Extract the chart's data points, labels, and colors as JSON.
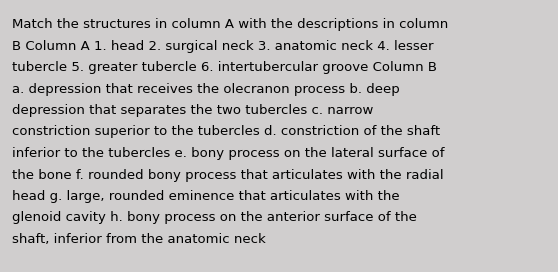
{
  "background_color": "#d0cece",
  "text_color": "#000000",
  "font_size": 9.5,
  "font_family": "DejaVu Sans",
  "wrapped_lines": [
    "Match the structures in column A with the descriptions in column",
    "B Column A 1. head 2. surgical neck 3. anatomic neck 4. lesser",
    "tubercle 5. greater tubercle 6. intertubercular groove Column B",
    "a. depression that receives the olecranon process b. deep",
    "depression that separates the two tubercles c. narrow",
    "constriction superior to the tubercles d. constriction of the shaft",
    "inferior to the tubercles e. bony process on the lateral surface of",
    "the bone f. rounded bony process that articulates with the radial",
    "head g. large, rounded eminence that articulates with the",
    "glenoid cavity h. bony process on the anterior surface of the",
    "shaft, inferior from the anatomic neck"
  ],
  "fig_width": 5.58,
  "fig_height": 2.72,
  "dpi": 100
}
